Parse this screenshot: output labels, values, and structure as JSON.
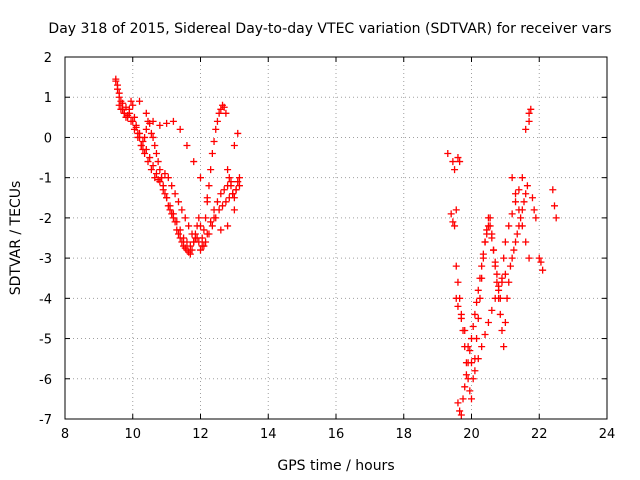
{
  "chart_data": {
    "type": "scatter",
    "title": "Day 318 of 2015, Sidereal Day-to-day VTEC variation (SDTVAR) for receiver vars",
    "xlabel": "GPS time / hours",
    "ylabel": "SDTVAR / TECUs",
    "xlim": [
      8,
      24
    ],
    "ylim": [
      -7,
      2
    ],
    "xticks": [
      8,
      10,
      12,
      14,
      16,
      18,
      20,
      22,
      24
    ],
    "yticks": [
      -7,
      -6,
      -5,
      -4,
      -3,
      -2,
      -1,
      0,
      1,
      2
    ],
    "grid": true,
    "marker": "plus",
    "series_color": "#ff0000",
    "series": [
      {
        "name": "vars",
        "x": [
          9.5,
          9.55,
          9.6,
          9.65,
          9.7,
          9.75,
          9.8,
          9.85,
          9.9,
          9.95,
          10.0,
          10.05,
          10.1,
          10.15,
          10.2,
          10.25,
          10.3,
          10.35,
          10.4,
          10.45,
          10.5,
          10.55,
          10.6,
          10.65,
          10.7,
          10.75,
          10.8,
          10.85,
          10.9,
          10.95,
          11.0,
          11.05,
          11.1,
          11.15,
          11.2,
          11.25,
          11.3,
          11.35,
          11.4,
          11.45,
          11.5,
          11.55,
          11.6,
          11.65,
          11.7,
          11.75,
          11.8,
          11.85,
          11.9,
          11.95,
          12.0,
          12.05,
          12.1,
          12.15,
          12.2,
          12.25,
          12.3,
          12.35,
          12.4,
          12.45,
          12.5,
          12.55,
          12.6,
          12.65,
          12.7,
          12.75,
          12.8,
          12.85,
          12.9,
          12.95,
          13.0,
          13.05,
          13.1,
          13.15,
          9.5,
          9.55,
          9.6,
          9.7,
          9.8,
          9.9,
          10.0,
          10.1,
          10.2,
          10.3,
          10.4,
          10.5,
          10.6,
          10.7,
          10.8,
          10.9,
          11.0,
          11.1,
          11.2,
          11.3,
          11.4,
          11.5,
          11.6,
          11.7,
          11.8,
          11.9,
          12.0,
          12.1,
          12.2,
          12.3,
          12.4,
          12.5,
          12.6,
          12.7,
          12.8,
          12.9,
          13.0,
          13.1,
          10.2,
          10.4,
          10.6,
          10.8,
          11.0,
          11.2,
          11.4,
          11.6,
          11.8,
          12.0,
          12.2,
          12.4,
          12.6,
          12.8,
          13.0,
          9.6,
          9.65,
          9.75,
          9.85,
          9.95,
          10.05,
          10.15,
          10.25,
          10.35,
          10.45,
          10.55,
          10.65,
          10.75,
          10.85,
          10.95,
          11.05,
          11.15,
          11.25,
          11.35,
          11.45,
          11.55,
          11.65,
          11.75,
          11.85,
          11.95,
          12.05,
          12.15,
          12.25,
          12.35,
          12.45,
          12.55,
          12.65,
          12.75,
          12.85,
          12.95,
          13.05,
          13.15,
          19.3,
          19.45,
          19.5,
          19.55,
          19.6,
          19.65,
          19.7,
          19.75,
          19.8,
          19.85,
          19.9,
          19.95,
          20.0,
          20.05,
          20.1,
          20.15,
          20.2,
          20.25,
          20.3,
          20.35,
          20.4,
          20.45,
          20.5,
          20.55,
          20.6,
          20.65,
          20.7,
          20.75,
          20.8,
          20.85,
          20.9,
          20.95,
          21.0,
          21.05,
          21.1,
          21.15,
          21.2,
          21.25,
          21.3,
          21.35,
          21.4,
          21.45,
          21.5,
          21.55,
          21.6,
          21.65,
          21.7,
          21.75,
          19.6,
          19.65,
          19.7,
          19.75,
          19.8,
          19.85,
          19.9,
          19.95,
          20.0,
          20.05,
          20.1,
          20.15,
          20.2,
          20.25,
          20.3,
          20.35,
          20.4,
          20.45,
          20.5,
          20.55,
          20.6,
          20.65,
          20.7,
          20.75,
          20.8,
          20.85,
          20.9,
          20.95,
          21.0,
          21.1,
          21.2,
          21.3,
          21.4,
          21.5,
          21.6,
          21.7,
          19.55,
          19.6,
          19.7,
          19.8,
          19.9,
          20.0,
          20.1,
          20.2,
          20.3,
          20.4,
          20.5,
          20.6,
          20.7,
          20.8,
          20.9,
          21.0,
          19.4,
          19.45,
          19.5,
          19.55,
          19.6,
          19.65,
          21.2,
          21.3,
          21.4,
          21.5,
          21.6,
          21.7,
          21.8,
          21.85,
          21.9,
          22.0,
          22.05,
          22.1,
          22.4,
          22.45,
          22.5
        ],
        "y": [
          1.4,
          1.3,
          1.1,
          0.9,
          0.7,
          0.6,
          0.5,
          0.55,
          0.7,
          0.9,
          0.8,
          0.5,
          0.3,
          0.1,
          0.0,
          -0.2,
          -0.3,
          0.0,
          0.2,
          0.4,
          0.35,
          0.1,
          0.0,
          -0.2,
          -0.4,
          -0.6,
          -0.8,
          -1.0,
          -1.2,
          -1.4,
          -1.5,
          -1.7,
          -1.8,
          -1.9,
          -2.0,
          -2.1,
          -2.3,
          -2.4,
          -2.5,
          -2.6,
          -2.7,
          -2.75,
          -2.8,
          -2.85,
          -2.9,
          -2.8,
          -2.6,
          -2.4,
          -2.2,
          -2.0,
          -2.2,
          -2.5,
          -2.3,
          -2.0,
          -1.6,
          -1.2,
          -0.8,
          -0.4,
          -0.1,
          0.2,
          0.4,
          0.6,
          0.7,
          0.8,
          0.75,
          0.6,
          -0.8,
          -1.0,
          -1.2,
          -1.4,
          -1.5,
          -1.3,
          -1.1,
          -1.0,
          1.45,
          1.2,
          1.0,
          0.85,
          0.75,
          0.6,
          0.4,
          0.25,
          0.1,
          -0.1,
          -0.3,
          -0.5,
          -0.7,
          -0.9,
          -1.1,
          -1.3,
          -1.5,
          -1.7,
          -1.9,
          -2.1,
          -2.3,
          -2.5,
          -2.6,
          -2.7,
          -2.6,
          -2.5,
          -2.8,
          -2.7,
          -2.4,
          -2.1,
          -1.8,
          -1.6,
          -1.4,
          -1.3,
          -1.2,
          -1.1,
          -0.2,
          0.1,
          0.9,
          0.6,
          0.4,
          0.3,
          0.35,
          0.4,
          0.2,
          -0.2,
          -0.6,
          -1.0,
          -1.5,
          -2.0,
          -2.3,
          -2.2,
          -1.8,
          0.8,
          0.7,
          0.6,
          0.5,
          0.4,
          0.2,
          0.0,
          -0.2,
          -0.4,
          -0.6,
          -0.8,
          -1.0,
          -1.05,
          -1.0,
          -0.9,
          -1.0,
          -1.2,
          -1.4,
          -1.6,
          -1.8,
          -2.0,
          -2.2,
          -2.4,
          -2.5,
          -2.6,
          -2.7,
          -2.6,
          -2.4,
          -2.2,
          -2.0,
          -1.8,
          -1.7,
          -1.6,
          -1.5,
          -1.4,
          -1.3,
          -1.2,
          -0.4,
          -0.6,
          -0.8,
          -3.2,
          -3.6,
          -4.0,
          -4.4,
          -4.8,
          -5.2,
          -5.6,
          -6.0,
          -6.3,
          -6.5,
          -6.0,
          -5.5,
          -5.0,
          -4.5,
          -4.0,
          -3.5,
          -3.0,
          -2.6,
          -2.4,
          -2.2,
          -2.0,
          -2.4,
          -2.8,
          -3.2,
          -3.6,
          -4.0,
          -4.4,
          -4.8,
          -5.2,
          -4.6,
          -4.0,
          -3.6,
          -3.2,
          -3.0,
          -2.8,
          -2.6,
          -2.4,
          -2.2,
          -2.0,
          -1.8,
          -1.6,
          -1.4,
          -1.2,
          0.4,
          0.7,
          -6.6,
          -6.8,
          -6.9,
          -6.5,
          -6.2,
          -5.9,
          -5.6,
          -5.3,
          -5.0,
          -4.7,
          -4.4,
          -4.1,
          -3.8,
          -3.5,
          -3.2,
          -2.9,
          -2.6,
          -2.3,
          -2.0,
          -2.2,
          -2.5,
          -2.8,
          -3.1,
          -3.4,
          -3.7,
          -4.0,
          -3.5,
          -3.0,
          -2.6,
          -2.2,
          -1.9,
          -1.6,
          -1.3,
          -1.0,
          0.2,
          0.6,
          -4.0,
          -4.2,
          -4.5,
          -4.8,
          -5.2,
          -5.6,
          -5.8,
          -5.5,
          -5.2,
          -4.9,
          -4.6,
          -4.3,
          -4.0,
          -3.8,
          -3.6,
          -3.4,
          -1.9,
          -2.1,
          -2.2,
          -1.8,
          -0.5,
          -0.6,
          -1.0,
          -1.4,
          -1.8,
          -2.2,
          -2.6,
          -3.0,
          -1.5,
          -1.8,
          -2.0,
          -3.0,
          -3.1,
          -3.3,
          -1.3,
          -1.7,
          -2.0
        ]
      }
    ]
  }
}
